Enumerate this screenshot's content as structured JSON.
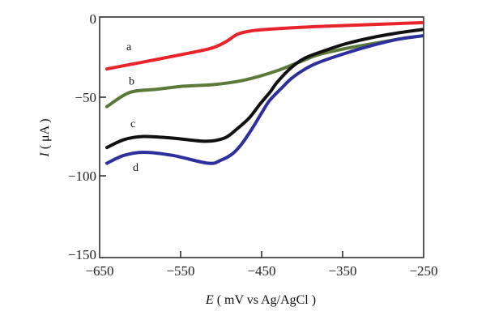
{
  "chart_data": {
    "type": "line",
    "xlabel": {
      "var": "E",
      "rest": "( mV vs Ag/AgCl )"
    },
    "ylabel": {
      "var": "I",
      "rest": "( μA )"
    },
    "xlim": [
      -650,
      -250
    ],
    "ylim": [
      -152,
      1
    ],
    "xticks": [
      "-650",
      "-550",
      "-450",
      "-350",
      "-250"
    ],
    "xtick_values": [
      -650,
      -550,
      -450,
      -350,
      -250
    ],
    "yticks": [
      "0",
      "-50",
      "-100",
      "-150"
    ],
    "ytick_values": [
      0,
      -50,
      -100,
      -150
    ],
    "grid": false,
    "series": [
      {
        "name": "a",
        "color": "#e8232a",
        "x": [
          -641,
          -600,
          -550,
          -513,
          -495,
          -480,
          -465,
          -447,
          -400,
          -350,
          -300,
          -252
        ],
        "y": [
          -32,
          -28,
          -23,
          -19,
          -15,
          -10,
          -8,
          -7,
          -5.5,
          -4.5,
          -3.5,
          -2.6
        ],
        "label_at": [
          -617,
          -20
        ]
      },
      {
        "name": "b",
        "color": "#5b7a3a",
        "x": [
          -641,
          -613,
          -580,
          -546,
          -510,
          -480,
          -455,
          -430,
          -405,
          -380,
          -346,
          -313,
          -280,
          -252
        ],
        "y": [
          -56,
          -47,
          -45,
          -43,
          -42,
          -40,
          -37,
          -33,
          -28,
          -23,
          -19,
          -16,
          -13,
          -11
        ],
        "label_at": [
          -614,
          -42
        ]
      },
      {
        "name": "c",
        "color": "#111111",
        "x": [
          -641,
          -620,
          -596,
          -560,
          -520,
          -496,
          -480,
          -465,
          -453,
          -440,
          -430,
          -413,
          -396,
          -370,
          -346,
          -313,
          -280,
          -252
        ],
        "y": [
          -82,
          -77,
          -75,
          -76,
          -78,
          -76,
          -70,
          -63,
          -55,
          -47,
          -40,
          -31,
          -25,
          -20,
          -16,
          -12,
          -9,
          -7
        ],
        "label_at": [
          -612,
          -69
        ]
      },
      {
        "name": "d",
        "color": "#2c2f9c",
        "x": [
          -641,
          -620,
          -596,
          -560,
          -516,
          -500,
          -486,
          -475,
          -463,
          -450,
          -440,
          -425,
          -413,
          -396,
          -380,
          -346,
          -313,
          -280,
          -252
        ],
        "y": [
          -92,
          -87,
          -85,
          -87,
          -92,
          -90,
          -86,
          -80,
          -71,
          -60,
          -52,
          -44,
          -38,
          -32,
          -28,
          -22,
          -17,
          -13,
          -11
        ],
        "label_at": [
          -609,
          -97
        ]
      }
    ]
  }
}
